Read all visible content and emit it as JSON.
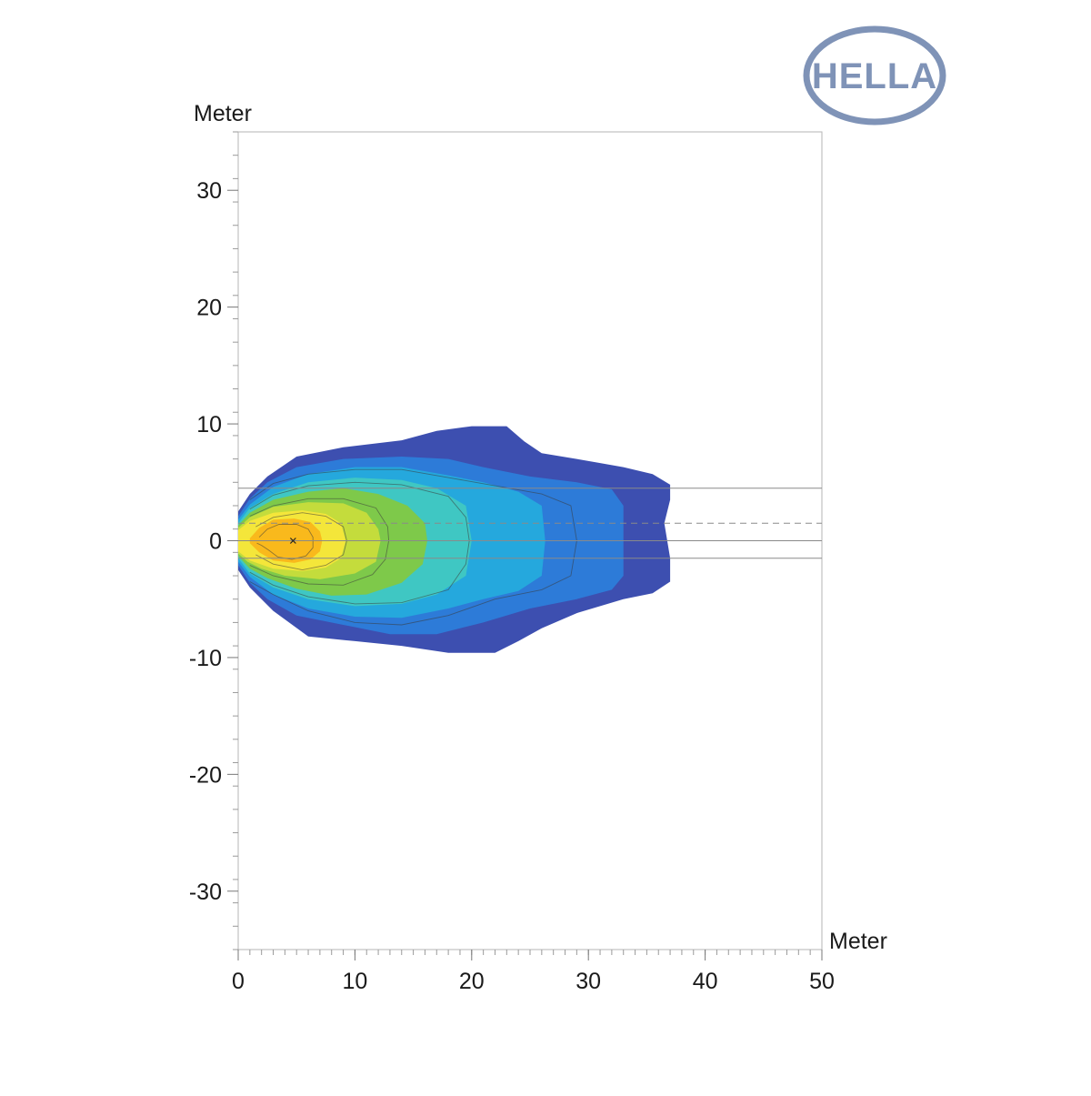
{
  "brand": {
    "logo_text": "HELLA",
    "logo_color": "#7f93b7"
  },
  "chart_data": {
    "type": "heatmap",
    "title": "",
    "xlabel": "Meter",
    "ylabel": "Meter",
    "xlim": [
      0,
      50
    ],
    "ylim": [
      -35,
      35
    ],
    "x_ticks": [
      0,
      10,
      20,
      30,
      40,
      50
    ],
    "x_tick_labels": [
      "0",
      "10",
      "20",
      "30",
      "40",
      "50"
    ],
    "y_ticks": [
      30,
      20,
      10,
      0,
      -10,
      -20,
      -30
    ],
    "y_tick_labels": [
      "30",
      "20",
      "10",
      "0",
      "-10",
      "-20",
      "-30"
    ],
    "grid": false,
    "legend": "none",
    "hotspot": [
      4.7,
      0
    ],
    "reference_lines": [
      {
        "y": 4.5,
        "style": "solid",
        "x_start": 0,
        "x_end": 50
      },
      {
        "y": 1.5,
        "style": "dashed",
        "x_start": 0,
        "x_end": 50
      },
      {
        "y": 0,
        "style": "solid",
        "x_start": 0,
        "x_end": 50
      },
      {
        "y": -1.5,
        "style": "solid",
        "x_start": 0,
        "x_end": 50
      }
    ],
    "levels": [
      {
        "color": "#3d4fb0",
        "outline": [
          [
            0,
            2.5
          ],
          [
            1,
            4
          ],
          [
            2.5,
            5.5
          ],
          [
            5,
            7.2
          ],
          [
            9,
            8
          ],
          [
            14,
            8.6
          ],
          [
            17,
            9.4
          ],
          [
            20,
            9.8
          ],
          [
            23,
            9.8
          ],
          [
            24.5,
            8.5
          ],
          [
            26,
            7.5
          ],
          [
            29,
            7
          ],
          [
            33,
            6.3
          ],
          [
            35.5,
            5.7
          ],
          [
            37,
            4.8
          ],
          [
            37,
            3.5
          ],
          [
            36.5,
            1.5
          ],
          [
            37,
            -1.5
          ],
          [
            37,
            -3.5
          ],
          [
            35.5,
            -4.5
          ],
          [
            33,
            -5
          ],
          [
            29,
            -6.2
          ],
          [
            26,
            -7.5
          ],
          [
            24,
            -8.6
          ],
          [
            22,
            -9.6
          ],
          [
            18,
            -9.6
          ],
          [
            14,
            -9
          ],
          [
            10,
            -8.6
          ],
          [
            6,
            -8.2
          ],
          [
            3,
            -6
          ],
          [
            1,
            -4
          ],
          [
            0,
            -2.5
          ]
        ]
      },
      {
        "color": "#2d7bd8",
        "outline": [
          [
            0,
            2.1
          ],
          [
            1,
            3.6
          ],
          [
            2.5,
            5
          ],
          [
            5,
            6.3
          ],
          [
            9,
            7
          ],
          [
            14,
            7.2
          ],
          [
            18,
            7
          ],
          [
            21,
            6.3
          ],
          [
            25,
            5.5
          ],
          [
            29,
            5
          ],
          [
            32,
            4.4
          ],
          [
            33,
            3
          ],
          [
            33,
            -3
          ],
          [
            32,
            -4.2
          ],
          [
            29,
            -5
          ],
          [
            25,
            -5.8
          ],
          [
            21,
            -7
          ],
          [
            17,
            -8
          ],
          [
            13,
            -8
          ],
          [
            9,
            -7.2
          ],
          [
            5,
            -6.4
          ],
          [
            2.5,
            -5
          ],
          [
            1,
            -3.6
          ],
          [
            0,
            -2.1
          ]
        ]
      },
      {
        "color": "#25a8dd",
        "outline": [
          [
            0,
            1.8
          ],
          [
            1,
            3.1
          ],
          [
            3,
            4.6
          ],
          [
            6,
            5.7
          ],
          [
            10,
            6.3
          ],
          [
            14,
            6.3
          ],
          [
            18,
            5.6
          ],
          [
            21,
            5
          ],
          [
            24,
            4.2
          ],
          [
            26,
            3
          ],
          [
            26.3,
            0
          ],
          [
            26,
            -3
          ],
          [
            24,
            -4.3
          ],
          [
            21,
            -5
          ],
          [
            18,
            -5.8
          ],
          [
            14,
            -6.6
          ],
          [
            10,
            -6.5
          ],
          [
            6,
            -5.8
          ],
          [
            3,
            -4.6
          ],
          [
            1,
            -3.1
          ],
          [
            0,
            -1.8
          ]
        ]
      },
      {
        "color": "#3fc7c3",
        "outline": [
          [
            0,
            1.5
          ],
          [
            1,
            2.8
          ],
          [
            3,
            4
          ],
          [
            6,
            5
          ],
          [
            10,
            5.4
          ],
          [
            14,
            5.2
          ],
          [
            17,
            4.5
          ],
          [
            19.5,
            3
          ],
          [
            20,
            0
          ],
          [
            19.5,
            -3
          ],
          [
            17,
            -4.6
          ],
          [
            14,
            -5.4
          ],
          [
            10,
            -5.6
          ],
          [
            6,
            -5
          ],
          [
            3,
            -4
          ],
          [
            1,
            -2.8
          ],
          [
            0,
            -1.5
          ]
        ]
      },
      {
        "color": "#7ec94a",
        "outline": [
          [
            0,
            1.3
          ],
          [
            1,
            2.4
          ],
          [
            3,
            3.5
          ],
          [
            6,
            4.2
          ],
          [
            9,
            4.5
          ],
          [
            12,
            4
          ],
          [
            14.5,
            3
          ],
          [
            16,
            1.5
          ],
          [
            16.2,
            0
          ],
          [
            15.8,
            -2
          ],
          [
            14,
            -3.6
          ],
          [
            11,
            -4.6
          ],
          [
            8,
            -4.7
          ],
          [
            5,
            -4.1
          ],
          [
            2.5,
            -3.2
          ],
          [
            1,
            -2.4
          ],
          [
            0,
            -1.3
          ]
        ]
      },
      {
        "color": "#c4dc3c",
        "outline": [
          [
            0,
            1.1
          ],
          [
            1,
            2
          ],
          [
            3,
            2.9
          ],
          [
            6,
            3.3
          ],
          [
            9,
            3.2
          ],
          [
            11,
            2.4
          ],
          [
            12,
            1
          ],
          [
            12.2,
            0
          ],
          [
            11.8,
            -1.8
          ],
          [
            10,
            -2.8
          ],
          [
            7,
            -3.3
          ],
          [
            4,
            -3
          ],
          [
            2,
            -2.4
          ],
          [
            0.8,
            -1.8
          ],
          [
            0,
            -1.1
          ]
        ]
      },
      {
        "color": "#f4e63a",
        "outline": [
          [
            0,
            0.9
          ],
          [
            1,
            1.7
          ],
          [
            3,
            2.4
          ],
          [
            5.5,
            2.6
          ],
          [
            7.5,
            2.3
          ],
          [
            8.8,
            1.5
          ],
          [
            9.2,
            0
          ],
          [
            8.8,
            -1.5
          ],
          [
            7.5,
            -2.3
          ],
          [
            5.5,
            -2.6
          ],
          [
            3,
            -2.4
          ],
          [
            1,
            -1.7
          ],
          [
            0,
            -0.9
          ]
        ]
      },
      {
        "color": "#f9b91c",
        "outline": [
          [
            1,
            0.2
          ],
          [
            1.8,
            1.1
          ],
          [
            3,
            1.8
          ],
          [
            4.8,
            1.9
          ],
          [
            6.2,
            1.6
          ],
          [
            7,
            0.8
          ],
          [
            7.2,
            0
          ],
          [
            7,
            -0.9
          ],
          [
            6.2,
            -1.6
          ],
          [
            4.8,
            -1.9
          ],
          [
            3,
            -1.7
          ],
          [
            1.8,
            -1
          ],
          [
            1,
            -0.2
          ]
        ]
      }
    ],
    "contour_lines": [
      [
        [
          1,
          3.5
        ],
        [
          3,
          4.9
        ],
        [
          6,
          5.7
        ],
        [
          10,
          6.1
        ],
        [
          14,
          6.1
        ],
        [
          18,
          5.4
        ],
        [
          22,
          4.7
        ],
        [
          26,
          4
        ],
        [
          28.5,
          3
        ],
        [
          29,
          0
        ],
        [
          28.5,
          -3
        ],
        [
          26,
          -4.2
        ],
        [
          22,
          -5
        ],
        [
          18,
          -6.4
        ],
        [
          14,
          -7.2
        ],
        [
          10,
          -7
        ],
        [
          6,
          -6
        ],
        [
          3,
          -4.6
        ],
        [
          1,
          -3.5
        ]
      ],
      [
        [
          1,
          2.7
        ],
        [
          3,
          3.9
        ],
        [
          6,
          4.7
        ],
        [
          10,
          5
        ],
        [
          14,
          4.8
        ],
        [
          18,
          3.8
        ],
        [
          19.5,
          2
        ],
        [
          19.8,
          0
        ],
        [
          19.5,
          -2
        ],
        [
          18,
          -4.2
        ],
        [
          14,
          -5.3
        ],
        [
          10,
          -5.4
        ],
        [
          6,
          -4.8
        ],
        [
          3,
          -3.8
        ],
        [
          1,
          -2.7
        ]
      ],
      [
        [
          1,
          2.1
        ],
        [
          3,
          3
        ],
        [
          6,
          3.6
        ],
        [
          9,
          3.6
        ],
        [
          11.8,
          2.8
        ],
        [
          12.8,
          1.2
        ],
        [
          12.9,
          0
        ],
        [
          12.6,
          -1.6
        ],
        [
          11.5,
          -2.9
        ],
        [
          9,
          -3.8
        ],
        [
          6,
          -3.7
        ],
        [
          3,
          -3
        ],
        [
          1,
          -2.1
        ]
      ],
      [
        [
          1.5,
          1.2
        ],
        [
          3,
          2
        ],
        [
          5.5,
          2.4
        ],
        [
          7.5,
          2.1
        ],
        [
          9,
          1.2
        ],
        [
          9.3,
          0
        ],
        [
          9,
          -1.2
        ],
        [
          7.5,
          -2.1
        ],
        [
          5.5,
          -2.5
        ],
        [
          3,
          -2
        ],
        [
          1.5,
          -1.2
        ]
      ],
      [
        [
          1.8,
          0.3
        ],
        [
          2.5,
          1
        ],
        [
          3.5,
          1.4
        ],
        [
          5,
          1.4
        ],
        [
          6,
          1
        ],
        [
          6.4,
          0.3
        ],
        [
          6.4,
          -0.6
        ],
        [
          5.8,
          -1.3
        ],
        [
          4.6,
          -1.6
        ],
        [
          3.4,
          -1.4
        ],
        [
          2.6,
          -0.8
        ],
        [
          2,
          -0.4
        ],
        [
          1.6,
          -0.2
        ]
      ]
    ]
  }
}
